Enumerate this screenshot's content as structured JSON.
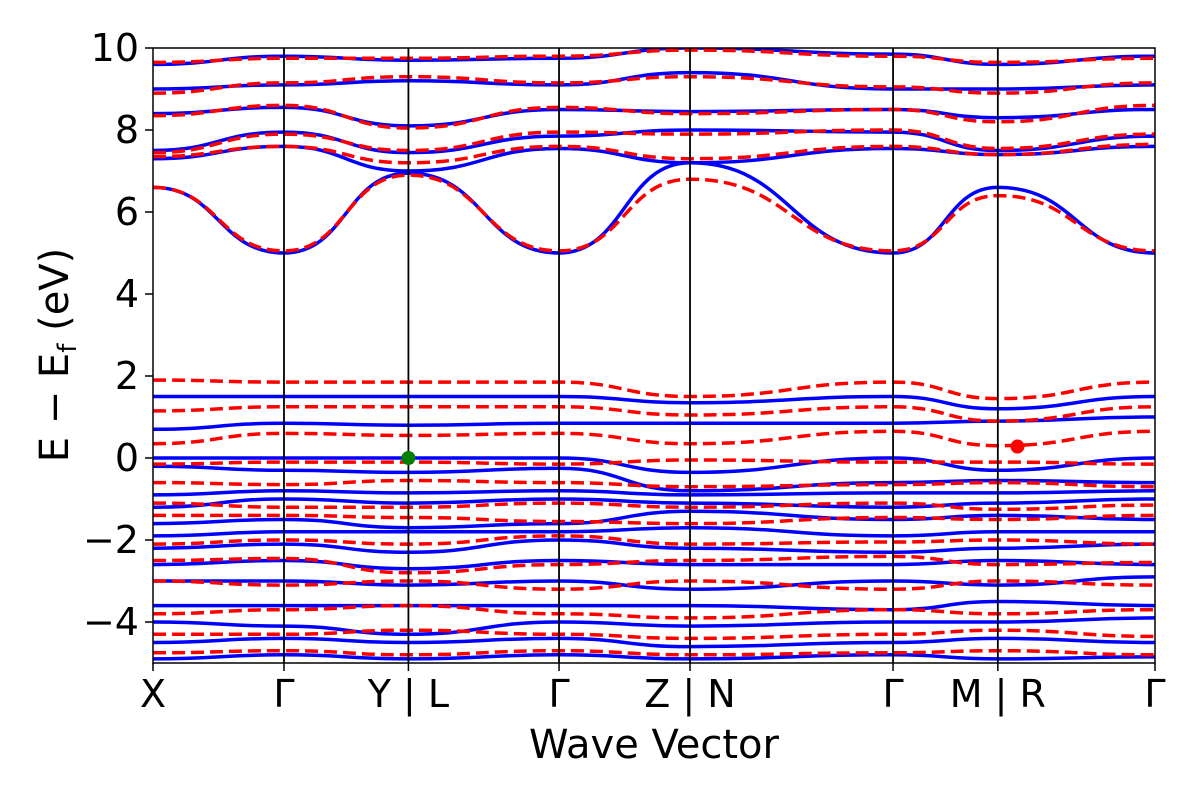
{
  "chart_data": {
    "type": "line",
    "title": "",
    "xlabel": "Wave Vector",
    "ylabel": "E − E",
    "ylabel_sub": "f",
    "ylabel_unit": " (eV)",
    "ylim": [
      -5,
      10
    ],
    "yticks": [
      -4,
      -2,
      0,
      2,
      4,
      6,
      8,
      10
    ],
    "ytick_labels": [
      "−4",
      "−2",
      "0",
      "2",
      "4",
      "6",
      "8",
      "10"
    ],
    "xlim": [
      0,
      7.65
    ],
    "kpoint_positions": [
      0,
      1.0,
      1.95,
      3.1,
      4.1,
      5.65,
      6.45,
      7.65
    ],
    "kpoint_labels": [
      "X",
      "Γ",
      "Y | L",
      "Γ",
      "Z | N",
      "Γ",
      "M | R",
      "Γ"
    ],
    "grid": false,
    "legend": "none",
    "colors": {
      "series_1": "#0000ff",
      "series_2": "#ff0000",
      "vbm_marker": "#008000",
      "cbm_marker": "#ff0000"
    },
    "series": [
      {
        "style": "solid",
        "color": "#0000ff",
        "bands": [
          {
            "x": [
              0,
              1.0,
              1.95,
              3.1,
              4.1,
              5.65,
              6.45,
              7.65
            ],
            "y": [
              6.6,
              5.0,
              6.95,
              5.0,
              7.2,
              5.0,
              6.6,
              5.0
            ]
          },
          {
            "x": [
              0,
              1.0,
              1.95,
              3.1,
              4.1,
              5.65,
              6.45,
              7.65
            ],
            "y": [
              7.3,
              7.6,
              7.0,
              7.55,
              7.2,
              7.55,
              7.4,
              7.6
            ]
          },
          {
            "x": [
              0,
              1.0,
              1.95,
              3.1,
              4.1,
              5.65,
              6.45,
              7.65
            ],
            "y": [
              7.5,
              7.95,
              7.45,
              7.85,
              8.0,
              7.95,
              7.5,
              7.85
            ]
          },
          {
            "x": [
              0,
              1.0,
              1.95,
              3.1,
              4.1,
              5.65,
              6.45,
              7.65
            ],
            "y": [
              8.4,
              8.55,
              8.1,
              8.5,
              8.45,
              8.5,
              8.3,
              8.5
            ]
          },
          {
            "x": [
              0,
              1.0,
              1.95,
              3.1,
              4.1,
              5.65,
              6.45,
              7.65
            ],
            "y": [
              9.0,
              9.1,
              9.2,
              9.1,
              9.4,
              9.0,
              9.0,
              9.1
            ]
          },
          {
            "x": [
              0,
              1.0,
              1.95,
              3.1,
              4.1,
              5.65,
              6.45,
              7.65
            ],
            "y": [
              9.6,
              9.8,
              9.7,
              9.75,
              10.0,
              9.85,
              9.6,
              9.8
            ]
          },
          {
            "x": [
              0,
              1.0,
              1.95,
              3.1,
              4.1,
              5.65,
              6.45,
              7.65
            ],
            "y": [
              1.5,
              1.5,
              1.5,
              1.5,
              1.35,
              1.5,
              1.2,
              1.5
            ]
          },
          {
            "x": [
              0,
              1.0,
              1.95,
              3.1,
              4.1,
              5.65,
              6.45,
              7.65
            ],
            "y": [
              0.7,
              0.85,
              0.8,
              0.85,
              0.85,
              0.85,
              0.9,
              1.0
            ]
          },
          {
            "x": [
              0,
              1.0,
              1.95,
              3.1,
              4.1,
              5.65,
              6.45,
              7.65
            ],
            "y": [
              0.0,
              0.0,
              0.0,
              0.0,
              -0.35,
              0.0,
              -0.3,
              0.0
            ]
          },
          {
            "x": [
              0,
              1.0,
              1.95,
              3.1,
              4.1,
              5.65,
              6.45,
              7.65
            ],
            "y": [
              -0.2,
              -0.3,
              -0.35,
              -0.25,
              -0.8,
              -0.6,
              -0.55,
              -0.6
            ]
          },
          {
            "x": [
              0,
              1.0,
              1.95,
              3.1,
              4.1,
              5.65,
              6.45,
              7.65
            ],
            "y": [
              -0.9,
              -0.8,
              -0.85,
              -0.8,
              -0.9,
              -0.85,
              -0.85,
              -0.8
            ]
          },
          {
            "x": [
              0,
              1.0,
              1.95,
              3.1,
              4.1,
              5.65,
              6.45,
              7.65
            ],
            "y": [
              -1.2,
              -1.0,
              -1.1,
              -1.0,
              -1.1,
              -1.2,
              -1.1,
              -1.0
            ]
          },
          {
            "x": [
              0,
              1.0,
              1.95,
              3.1,
              4.1,
              5.65,
              6.45,
              7.65
            ],
            "y": [
              -1.6,
              -1.5,
              -1.7,
              -1.6,
              -1.3,
              -1.5,
              -1.4,
              -1.5
            ]
          },
          {
            "x": [
              0,
              1.0,
              1.95,
              3.1,
              4.1,
              5.65,
              6.45,
              7.65
            ],
            "y": [
              -1.9,
              -1.8,
              -1.8,
              -1.8,
              -1.7,
              -1.9,
              -1.8,
              -1.8
            ]
          },
          {
            "x": [
              0,
              1.0,
              1.95,
              3.1,
              4.1,
              5.65,
              6.45,
              7.65
            ],
            "y": [
              -2.2,
              -2.1,
              -2.3,
              -2.0,
              -2.2,
              -2.3,
              -2.2,
              -2.1
            ]
          },
          {
            "x": [
              0,
              1.0,
              1.95,
              3.1,
              4.1,
              5.65,
              6.45,
              7.65
            ],
            "y": [
              -2.6,
              -2.5,
              -2.7,
              -2.5,
              -2.6,
              -2.6,
              -2.5,
              -2.6
            ]
          },
          {
            "x": [
              0,
              1.0,
              1.95,
              3.1,
              4.1,
              5.65,
              6.45,
              7.65
            ],
            "y": [
              -3.0,
              -3.0,
              -3.1,
              -3.0,
              -3.2,
              -3.0,
              -3.1,
              -2.9
            ]
          },
          {
            "x": [
              0,
              1.0,
              1.95,
              3.1,
              4.1,
              5.65,
              6.45,
              7.65
            ],
            "y": [
              -3.6,
              -3.6,
              -3.6,
              -3.6,
              -3.6,
              -3.7,
              -3.5,
              -3.6
            ]
          },
          {
            "x": [
              0,
              1.0,
              1.95,
              3.1,
              4.1,
              5.65,
              6.45,
              7.65
            ],
            "y": [
              -4.0,
              -4.1,
              -4.3,
              -4.0,
              -4.1,
              -4.0,
              -4.0,
              -3.9
            ]
          },
          {
            "x": [
              0,
              1.0,
              1.95,
              3.1,
              4.1,
              5.65,
              6.45,
              7.65
            ],
            "y": [
              -4.5,
              -4.4,
              -4.5,
              -4.4,
              -4.6,
              -4.5,
              -4.4,
              -4.5
            ]
          },
          {
            "x": [
              0,
              1.0,
              1.95,
              3.1,
              4.1,
              5.65,
              6.45,
              7.65
            ],
            "y": [
              -4.9,
              -4.8,
              -4.9,
              -4.8,
              -4.9,
              -4.8,
              -4.9,
              -4.85
            ]
          }
        ]
      },
      {
        "style": "dashed",
        "color": "#ff0000",
        "bands": [
          {
            "x": [
              0,
              1.0,
              1.95,
              3.1,
              4.1,
              5.65,
              6.45,
              7.65
            ],
            "y": [
              6.6,
              5.05,
              6.9,
              5.05,
              6.8,
              5.05,
              6.4,
              5.05
            ]
          },
          {
            "x": [
              0,
              1.0,
              1.95,
              3.1,
              4.1,
              5.65,
              6.45,
              7.65
            ],
            "y": [
              7.35,
              7.6,
              7.2,
              7.6,
              7.3,
              7.6,
              7.4,
              7.65
            ]
          },
          {
            "x": [
              0,
              1.0,
              1.95,
              3.1,
              4.1,
              5.65,
              6.45,
              7.65
            ],
            "y": [
              7.45,
              7.9,
              7.5,
              7.95,
              7.9,
              8.0,
              7.55,
              7.9
            ]
          },
          {
            "x": [
              0,
              1.0,
              1.95,
              3.1,
              4.1,
              5.65,
              6.45,
              7.65
            ],
            "y": [
              8.35,
              8.6,
              8.05,
              8.55,
              8.4,
              8.5,
              8.2,
              8.6
            ]
          },
          {
            "x": [
              0,
              1.0,
              1.95,
              3.1,
              4.1,
              5.65,
              6.45,
              7.65
            ],
            "y": [
              8.9,
              9.15,
              9.3,
              9.15,
              9.3,
              9.05,
              8.9,
              9.15
            ]
          },
          {
            "x": [
              0,
              1.0,
              1.95,
              3.1,
              4.1,
              5.65,
              6.45,
              7.65
            ],
            "y": [
              9.65,
              9.75,
              9.75,
              9.8,
              9.95,
              9.8,
              9.65,
              9.75
            ]
          },
          {
            "x": [
              0,
              1.0,
              1.95,
              3.1,
              4.1,
              5.65,
              6.45,
              7.65
            ],
            "y": [
              1.9,
              1.85,
              1.85,
              1.85,
              1.5,
              1.85,
              1.45,
              1.85
            ]
          },
          {
            "x": [
              0,
              1.0,
              1.95,
              3.1,
              4.1,
              5.65,
              6.45,
              7.65
            ],
            "y": [
              1.15,
              1.25,
              1.25,
              1.25,
              1.05,
              1.25,
              0.9,
              1.25
            ]
          },
          {
            "x": [
              0,
              1.0,
              1.95,
              3.1,
              4.1,
              5.65,
              6.45,
              7.65
            ],
            "y": [
              0.35,
              0.6,
              0.55,
              0.6,
              0.35,
              0.65,
              0.3,
              0.65
            ]
          },
          {
            "x": [
              0,
              1.0,
              1.95,
              3.1,
              4.1,
              5.65,
              6.45,
              7.65
            ],
            "y": [
              -0.15,
              -0.1,
              -0.1,
              -0.15,
              -0.05,
              -0.1,
              -0.1,
              -0.15
            ]
          },
          {
            "x": [
              0,
              1.0,
              1.95,
              3.1,
              4.1,
              5.65,
              6.45,
              7.65
            ],
            "y": [
              -0.6,
              -0.65,
              -0.55,
              -0.6,
              -0.7,
              -0.65,
              -0.6,
              -0.7
            ]
          },
          {
            "x": [
              0,
              1.0,
              1.95,
              3.1,
              4.1,
              5.65,
              6.45,
              7.65
            ],
            "y": [
              -1.1,
              -1.2,
              -1.2,
              -1.1,
              -1.2,
              -1.1,
              -1.25,
              -1.15
            ]
          },
          {
            "x": [
              0,
              1.0,
              1.95,
              3.1,
              4.1,
              5.65,
              6.45,
              7.65
            ],
            "y": [
              -1.4,
              -1.4,
              -1.45,
              -1.55,
              -1.6,
              -1.45,
              -1.5,
              -1.4
            ]
          },
          {
            "x": [
              0,
              1.0,
              1.95,
              3.1,
              4.1,
              5.65,
              6.45,
              7.65
            ],
            "y": [
              -2.1,
              -2.0,
              -2.1,
              -1.9,
              -2.1,
              -2.05,
              -2.0,
              -2.1
            ]
          },
          {
            "x": [
              0,
              1.0,
              1.95,
              3.1,
              4.1,
              5.65,
              6.45,
              7.65
            ],
            "y": [
              -2.5,
              -2.45,
              -2.8,
              -2.6,
              -2.5,
              -2.4,
              -2.6,
              -2.55
            ]
          },
          {
            "x": [
              0,
              1.0,
              1.95,
              3.1,
              4.1,
              5.65,
              6.45,
              7.65
            ],
            "y": [
              -3.0,
              -3.1,
              -3.0,
              -3.2,
              -3.0,
              -3.2,
              -3.0,
              -3.1
            ]
          },
          {
            "x": [
              0,
              1.0,
              1.95,
              3.1,
              4.1,
              5.65,
              6.45,
              7.65
            ],
            "y": [
              -3.8,
              -3.7,
              -3.6,
              -3.8,
              -3.9,
              -3.7,
              -3.8,
              -3.7
            ]
          },
          {
            "x": [
              0,
              1.0,
              1.95,
              3.1,
              4.1,
              5.65,
              6.45,
              7.65
            ],
            "y": [
              -4.3,
              -4.3,
              -4.2,
              -4.3,
              -4.4,
              -4.3,
              -4.2,
              -4.35
            ]
          },
          {
            "x": [
              0,
              1.0,
              1.95,
              3.1,
              4.1,
              5.65,
              6.45,
              7.65
            ],
            "y": [
              -4.75,
              -4.7,
              -4.8,
              -4.7,
              -4.8,
              -4.75,
              -4.7,
              -4.8
            ]
          }
        ]
      }
    ],
    "markers": [
      {
        "x": 1.95,
        "y": 0.0,
        "color": "#008000"
      },
      {
        "x": 6.6,
        "y": 0.28,
        "color": "#ff0000"
      }
    ]
  }
}
